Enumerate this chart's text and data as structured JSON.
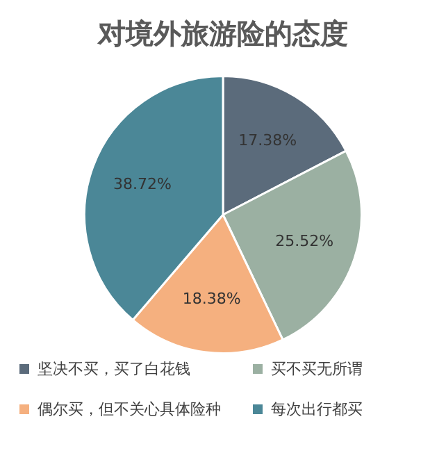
{
  "chart_data": {
    "type": "pie",
    "title": "对境外旅游险的态度",
    "categories": [
      "坚决不买，买了白花钱",
      "买不买无所谓",
      "偶尔买，但不关心具体险种",
      "每次出行都买"
    ],
    "values": [
      17.38,
      25.52,
      18.38,
      38.72
    ],
    "colors": [
      "#5b6b7b",
      "#9bb0a2",
      "#f5b07f",
      "#4b8797"
    ],
    "value_labels": [
      "17.38%",
      "25.52%",
      "18.38%",
      "38.72%"
    ],
    "legend": "bottom"
  }
}
